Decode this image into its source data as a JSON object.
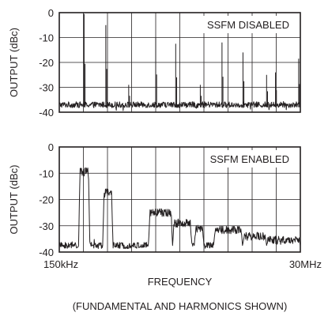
{
  "figure": {
    "xlabel": "FREQUENCY",
    "caption": "(FUNDAMENTAL AND HARMONICS SHOWN)",
    "x_start_label": "150kHz",
    "x_end_label": "30MHz"
  },
  "chart_data": [
    {
      "type": "line",
      "title": "SSFM DISABLED",
      "ylabel": "OUTPUT (dBc)",
      "ylim": [
        -40,
        0
      ],
      "yticks": [
        "0",
        "-10",
        "-20",
        "-30",
        "-40"
      ],
      "grid": true,
      "x_range_label": [
        "150kHz",
        "30MHz"
      ],
      "noise_floor_dBc": -37,
      "spurs": [
        {
          "x": 0.103,
          "dBc": -0.5
        },
        {
          "x": 0.193,
          "dBc": -5
        },
        {
          "x": 0.288,
          "dBc": -29
        },
        {
          "x": 0.4,
          "dBc": -10
        },
        {
          "x": 0.483,
          "dBc": -12.5
        },
        {
          "x": 0.585,
          "dBc": -29
        },
        {
          "x": 0.675,
          "dBc": -12
        },
        {
          "x": 0.762,
          "dBc": -16
        },
        {
          "x": 0.86,
          "dBc": -25
        },
        {
          "x": 0.897,
          "dBc": -24
        },
        {
          "x": 0.993,
          "dBc": -18.5
        }
      ]
    },
    {
      "type": "line",
      "title": "SSFM ENABLED",
      "ylabel": "OUTPUT (dBc)",
      "ylim": [
        -40,
        0
      ],
      "yticks": [
        "0",
        "-10",
        "-20",
        "-30",
        "-40"
      ],
      "grid": true,
      "x_range_label": [
        "150kHz",
        "30MHz"
      ],
      "noise_floor_dBc": -37.5,
      "humps": [
        {
          "x_start": 0.08,
          "x_end": 0.127,
          "dBc": -9.5
        },
        {
          "x_start": 0.18,
          "x_end": 0.223,
          "dBc": -17.5
        },
        {
          "x_start": 0.37,
          "x_end": 0.47,
          "dBc": -25
        },
        {
          "x_start": 0.47,
          "x_end": 0.55,
          "dBc": -29
        },
        {
          "x_start": 0.56,
          "x_end": 0.6,
          "dBc": -31
        },
        {
          "x_start": 0.64,
          "x_end": 0.76,
          "dBc": -31.5
        },
        {
          "x_start": 0.76,
          "x_end": 0.86,
          "dBc": -34
        },
        {
          "x_start": 0.86,
          "x_end": 1.0,
          "dBc": -35.5
        }
      ]
    }
  ]
}
